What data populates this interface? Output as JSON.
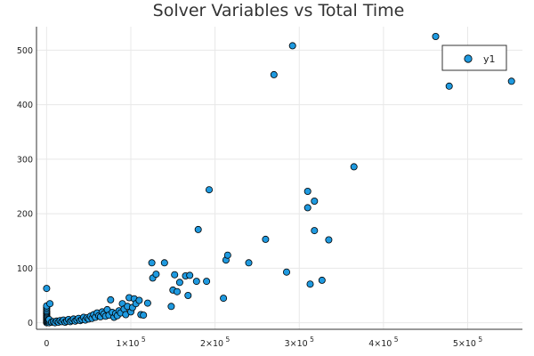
{
  "chart_data": {
    "type": "scatter",
    "title": "Solver Variables vs Total Time",
    "xlabel": "",
    "ylabel": "",
    "xlim": [
      -12000,
      565000
    ],
    "ylim": [
      -12,
      543
    ],
    "x_ticks": [
      {
        "value": 0,
        "base": "0",
        "exp": ""
      },
      {
        "value": 100000,
        "base": "1×10",
        "exp": "5"
      },
      {
        "value": 200000,
        "base": "2×10",
        "exp": "5"
      },
      {
        "value": 300000,
        "base": "3×10",
        "exp": "5"
      },
      {
        "value": 400000,
        "base": "4×10",
        "exp": "5"
      },
      {
        "value": 500000,
        "base": "5×10",
        "exp": "5"
      }
    ],
    "y_ticks": [
      0,
      100,
      200,
      300,
      400,
      500
    ],
    "grid": true,
    "legend_position": "top-right",
    "color": "#1f9ae0",
    "series": [
      {
        "name": "y1",
        "points": [
          [
            0,
            63
          ],
          [
            0,
            0
          ],
          [
            0,
            2
          ],
          [
            0,
            4
          ],
          [
            0,
            6
          ],
          [
            0,
            8
          ],
          [
            0,
            10
          ],
          [
            0,
            12
          ],
          [
            0,
            14
          ],
          [
            0,
            16
          ],
          [
            0,
            18
          ],
          [
            0,
            20
          ],
          [
            0,
            22
          ],
          [
            0,
            25
          ],
          [
            0,
            28
          ],
          [
            0,
            31
          ],
          [
            3000,
            0
          ],
          [
            3000,
            3
          ],
          [
            3000,
            6
          ],
          [
            4000,
            35
          ],
          [
            6000,
            1
          ],
          [
            8000,
            2
          ],
          [
            10000,
            0
          ],
          [
            12000,
            3
          ],
          [
            14000,
            1
          ],
          [
            16000,
            4
          ],
          [
            18000,
            2
          ],
          [
            20000,
            5
          ],
          [
            22000,
            1
          ],
          [
            24000,
            3
          ],
          [
            26000,
            6
          ],
          [
            28000,
            2
          ],
          [
            30000,
            4
          ],
          [
            32000,
            7
          ],
          [
            34000,
            3
          ],
          [
            36000,
            5
          ],
          [
            38000,
            8
          ],
          [
            40000,
            4
          ],
          [
            42000,
            6
          ],
          [
            44000,
            10
          ],
          [
            46000,
            5
          ],
          [
            48000,
            9
          ],
          [
            50000,
            7
          ],
          [
            52000,
            12
          ],
          [
            54000,
            8
          ],
          [
            56000,
            15
          ],
          [
            58000,
            10
          ],
          [
            60000,
            18
          ],
          [
            62000,
            13
          ],
          [
            64000,
            11
          ],
          [
            66000,
            20
          ],
          [
            68000,
            16
          ],
          [
            70000,
            12
          ],
          [
            72000,
            24
          ],
          [
            74000,
            14
          ],
          [
            76000,
            42
          ],
          [
            78000,
            19
          ],
          [
            80000,
            10
          ],
          [
            82000,
            17
          ],
          [
            84000,
            13
          ],
          [
            86000,
            22
          ],
          [
            88000,
            18
          ],
          [
            90000,
            35
          ],
          [
            92000,
            25
          ],
          [
            94000,
            15
          ],
          [
            96000,
            30
          ],
          [
            98000,
            46
          ],
          [
            100000,
            20
          ],
          [
            102000,
            28
          ],
          [
            104000,
            44
          ],
          [
            106000,
            35
          ],
          [
            110000,
            41
          ],
          [
            112000,
            15
          ],
          [
            115000,
            14
          ],
          [
            120000,
            36
          ],
          [
            125000,
            110
          ],
          [
            126000,
            82
          ],
          [
            130000,
            89
          ],
          [
            140000,
            110
          ],
          [
            148000,
            30
          ],
          [
            150000,
            60
          ],
          [
            152000,
            88
          ],
          [
            155000,
            57
          ],
          [
            158000,
            74
          ],
          [
            165000,
            86
          ],
          [
            168000,
            50
          ],
          [
            170000,
            87
          ],
          [
            178000,
            76
          ],
          [
            180000,
            171
          ],
          [
            190000,
            76
          ],
          [
            193000,
            244
          ],
          [
            210000,
            45
          ],
          [
            213000,
            115
          ],
          [
            215000,
            124
          ],
          [
            240000,
            110
          ],
          [
            260000,
            153
          ],
          [
            270000,
            455
          ],
          [
            285000,
            93
          ],
          [
            292000,
            508
          ],
          [
            310000,
            241
          ],
          [
            310000,
            211
          ],
          [
            313000,
            71
          ],
          [
            318000,
            223
          ],
          [
            318000,
            169
          ],
          [
            327000,
            78
          ],
          [
            335000,
            152
          ],
          [
            365000,
            286
          ],
          [
            462000,
            525
          ],
          [
            478000,
            434
          ],
          [
            552000,
            443
          ]
        ]
      }
    ]
  }
}
